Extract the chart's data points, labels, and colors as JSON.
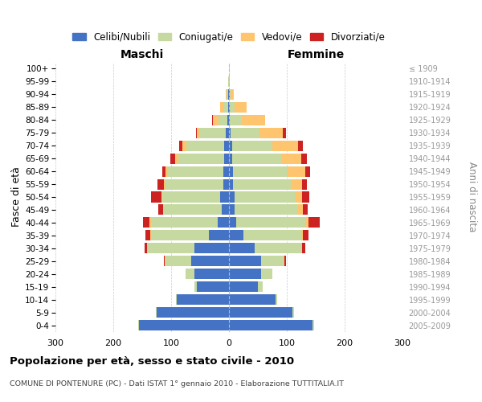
{
  "age_groups": [
    "0-4",
    "5-9",
    "10-14",
    "15-19",
    "20-24",
    "25-29",
    "30-34",
    "35-39",
    "40-44",
    "45-49",
    "50-54",
    "55-59",
    "60-64",
    "65-69",
    "70-74",
    "75-79",
    "80-84",
    "85-89",
    "90-94",
    "95-99",
    "100+"
  ],
  "birth_years": [
    "2005-2009",
    "2000-2004",
    "1995-1999",
    "1990-1994",
    "1985-1989",
    "1980-1984",
    "1975-1979",
    "1970-1974",
    "1965-1969",
    "1960-1964",
    "1955-1959",
    "1950-1954",
    "1945-1949",
    "1940-1944",
    "1935-1939",
    "1930-1934",
    "1925-1929",
    "1920-1924",
    "1915-1919",
    "1910-1914",
    "≤ 1909"
  ],
  "colors": {
    "celibi": "#4472c4",
    "coniugati": "#c5d9a0",
    "vedovi": "#ffc56e",
    "divorziati": "#cc2222"
  },
  "maschi": {
    "celibi": [
      155,
      125,
      90,
      55,
      60,
      65,
      60,
      35,
      20,
      12,
      15,
      10,
      10,
      8,
      8,
      5,
      3,
      2,
      1,
      0,
      0
    ],
    "coniugati": [
      2,
      2,
      2,
      5,
      15,
      45,
      80,
      100,
      115,
      100,
      100,
      100,
      95,
      80,
      65,
      45,
      15,
      8,
      3,
      1,
      0
    ],
    "vedovi": [
      0,
      0,
      0,
      0,
      0,
      1,
      1,
      1,
      2,
      2,
      2,
      3,
      5,
      5,
      8,
      5,
      10,
      5,
      2,
      0,
      0
    ],
    "divorziati": [
      0,
      0,
      0,
      0,
      0,
      2,
      5,
      8,
      12,
      8,
      18,
      10,
      5,
      8,
      5,
      2,
      1,
      0,
      0,
      0,
      0
    ]
  },
  "femmine": {
    "celibi": [
      145,
      110,
      80,
      50,
      55,
      55,
      45,
      25,
      12,
      10,
      10,
      7,
      7,
      5,
      5,
      3,
      2,
      2,
      1,
      0,
      0
    ],
    "coniugati": [
      2,
      3,
      3,
      8,
      20,
      40,
      80,
      100,
      120,
      110,
      105,
      100,
      95,
      85,
      70,
      50,
      20,
      8,
      2,
      0,
      0
    ],
    "vedovi": [
      0,
      0,
      0,
      0,
      0,
      1,
      2,
      3,
      5,
      8,
      12,
      20,
      30,
      35,
      45,
      40,
      40,
      20,
      5,
      2,
      0
    ],
    "divorziati": [
      0,
      0,
      0,
      0,
      0,
      2,
      5,
      10,
      20,
      8,
      12,
      8,
      8,
      10,
      8,
      5,
      1,
      0,
      0,
      0,
      0
    ]
  },
  "title": "Popolazione per età, sesso e stato civile - 2010",
  "subtitle": "COMUNE DI PONTENURE (PC) - Dati ISTAT 1° gennaio 2010 - Elaborazione TUTTITALIA.IT",
  "label_maschi": "Maschi",
  "label_femmine": "Femmine",
  "ylabel_left": "Fasce di età",
  "ylabel_right": "Anni di nascita",
  "legend_labels": [
    "Celibi/Nubili",
    "Coniugati/e",
    "Vedovi/e",
    "Divorziati/e"
  ],
  "xlim": 300,
  "background_color": "#ffffff",
  "grid_color": "#cccccc"
}
